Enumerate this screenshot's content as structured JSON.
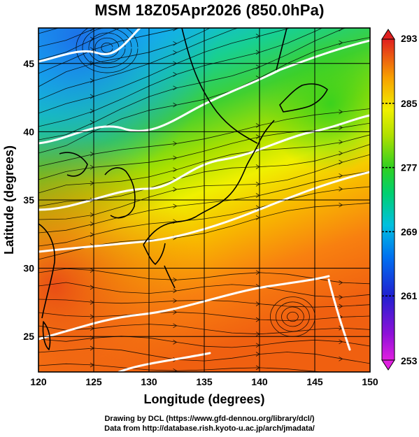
{
  "title": "MSM 18Z05Apr2026 (850.0hPa)",
  "xlabel": "Longitude (degrees)",
  "ylabel": "Latitude  (degrees)",
  "lon_ticks": [
    120,
    125,
    130,
    135,
    140,
    145,
    150
  ],
  "lat_ticks": [
    25,
    30,
    35,
    40,
    45
  ],
  "lon_range": [
    120,
    150
  ],
  "lat_range": [
    22.4,
    47.6
  ],
  "colorbar": {
    "labels": [
      293,
      285,
      277,
      269,
      261,
      253
    ],
    "range": [
      253,
      293
    ],
    "stops": [
      "#d000d0",
      "#4020d0",
      "#0060f0",
      "#00c0e0",
      "#00d080",
      "#30d020",
      "#a0e000",
      "#f0f000",
      "#f8a000",
      "#f04010",
      "#e03030"
    ]
  },
  "credits": {
    "line1": "Drawing by DCL (https://www.gfd-dennou.org/library/dcl/)",
    "line2": "Data from http://database.rish.kyoto-u.ac.jp/arch/jmadata/"
  }
}
